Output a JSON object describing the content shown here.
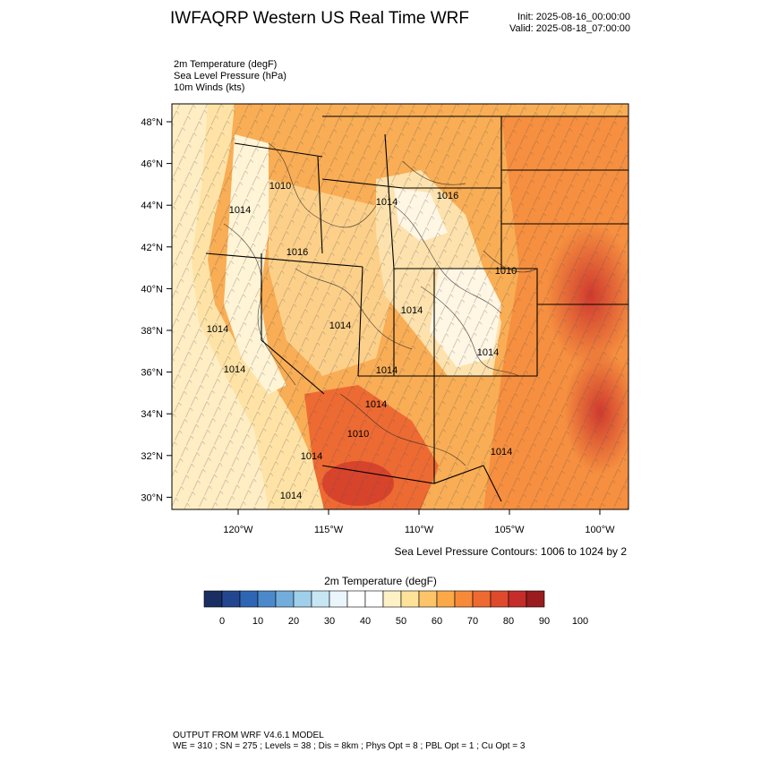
{
  "header": {
    "title": "IWFAQRP Western US Real Time WRF",
    "init": "Init: 2025-08-16_00:00:00",
    "valid": "Valid: 2025-08-18_07:00:00"
  },
  "fields": [
    "2m Temperature   (degF)",
    "Sea Level Pressure   (hPa)",
    "10m Winds   (kts)"
  ],
  "map": {
    "lat_labels": [
      "48°N",
      "46°N",
      "44°N",
      "42°N",
      "40°N",
      "38°N",
      "36°N",
      "34°N",
      "32°N",
      "30°N"
    ],
    "lon_labels": [
      "120°W",
      "115°W",
      "110°W",
      "105°W",
      "100°W"
    ],
    "pressure_labels": [
      "1010",
      "1014",
      "1014",
      "1016",
      "1016",
      "1010",
      "1014",
      "1014",
      "1014",
      "1014",
      "1014",
      "1014",
      "1010",
      "1014",
      "1014",
      "1014",
      "1014"
    ],
    "colors": {
      "ocean": "#ffe6b0",
      "warm": "#f7a24a",
      "hot": "#e7553a",
      "hottest": "#c9322c",
      "cool": "#fdd38a",
      "mountain": "#ffffff"
    }
  },
  "contour_note": "Sea Level Pressure Contours: 1006 to 1024 by 2",
  "colorbar": {
    "title": "2m Temperature  (degF)",
    "colors": [
      "#1b2e63",
      "#23478f",
      "#2f66b3",
      "#4b89cb",
      "#72addc",
      "#9fcfe9",
      "#c7e6f4",
      "#eaf6fb",
      "#ffffff",
      "#ffffff",
      "#fff1c6",
      "#fee29a",
      "#fdc46a",
      "#fba848",
      "#f78a38",
      "#ee6a30",
      "#df4a2d",
      "#c52d2a",
      "#9a1c1f"
    ],
    "tick_labels": [
      "0",
      "10",
      "20",
      "30",
      "40",
      "50",
      "60",
      "70",
      "80",
      "90",
      "100"
    ]
  },
  "footer": {
    "line1": "OUTPUT FROM WRF V4.6.1 MODEL",
    "line2": "WE = 310 ; SN = 275 ; Levels = 38 ; Dis = 8km ; Phys Opt = 8 ; PBL Opt = 1 ; Cu Opt = 3"
  }
}
